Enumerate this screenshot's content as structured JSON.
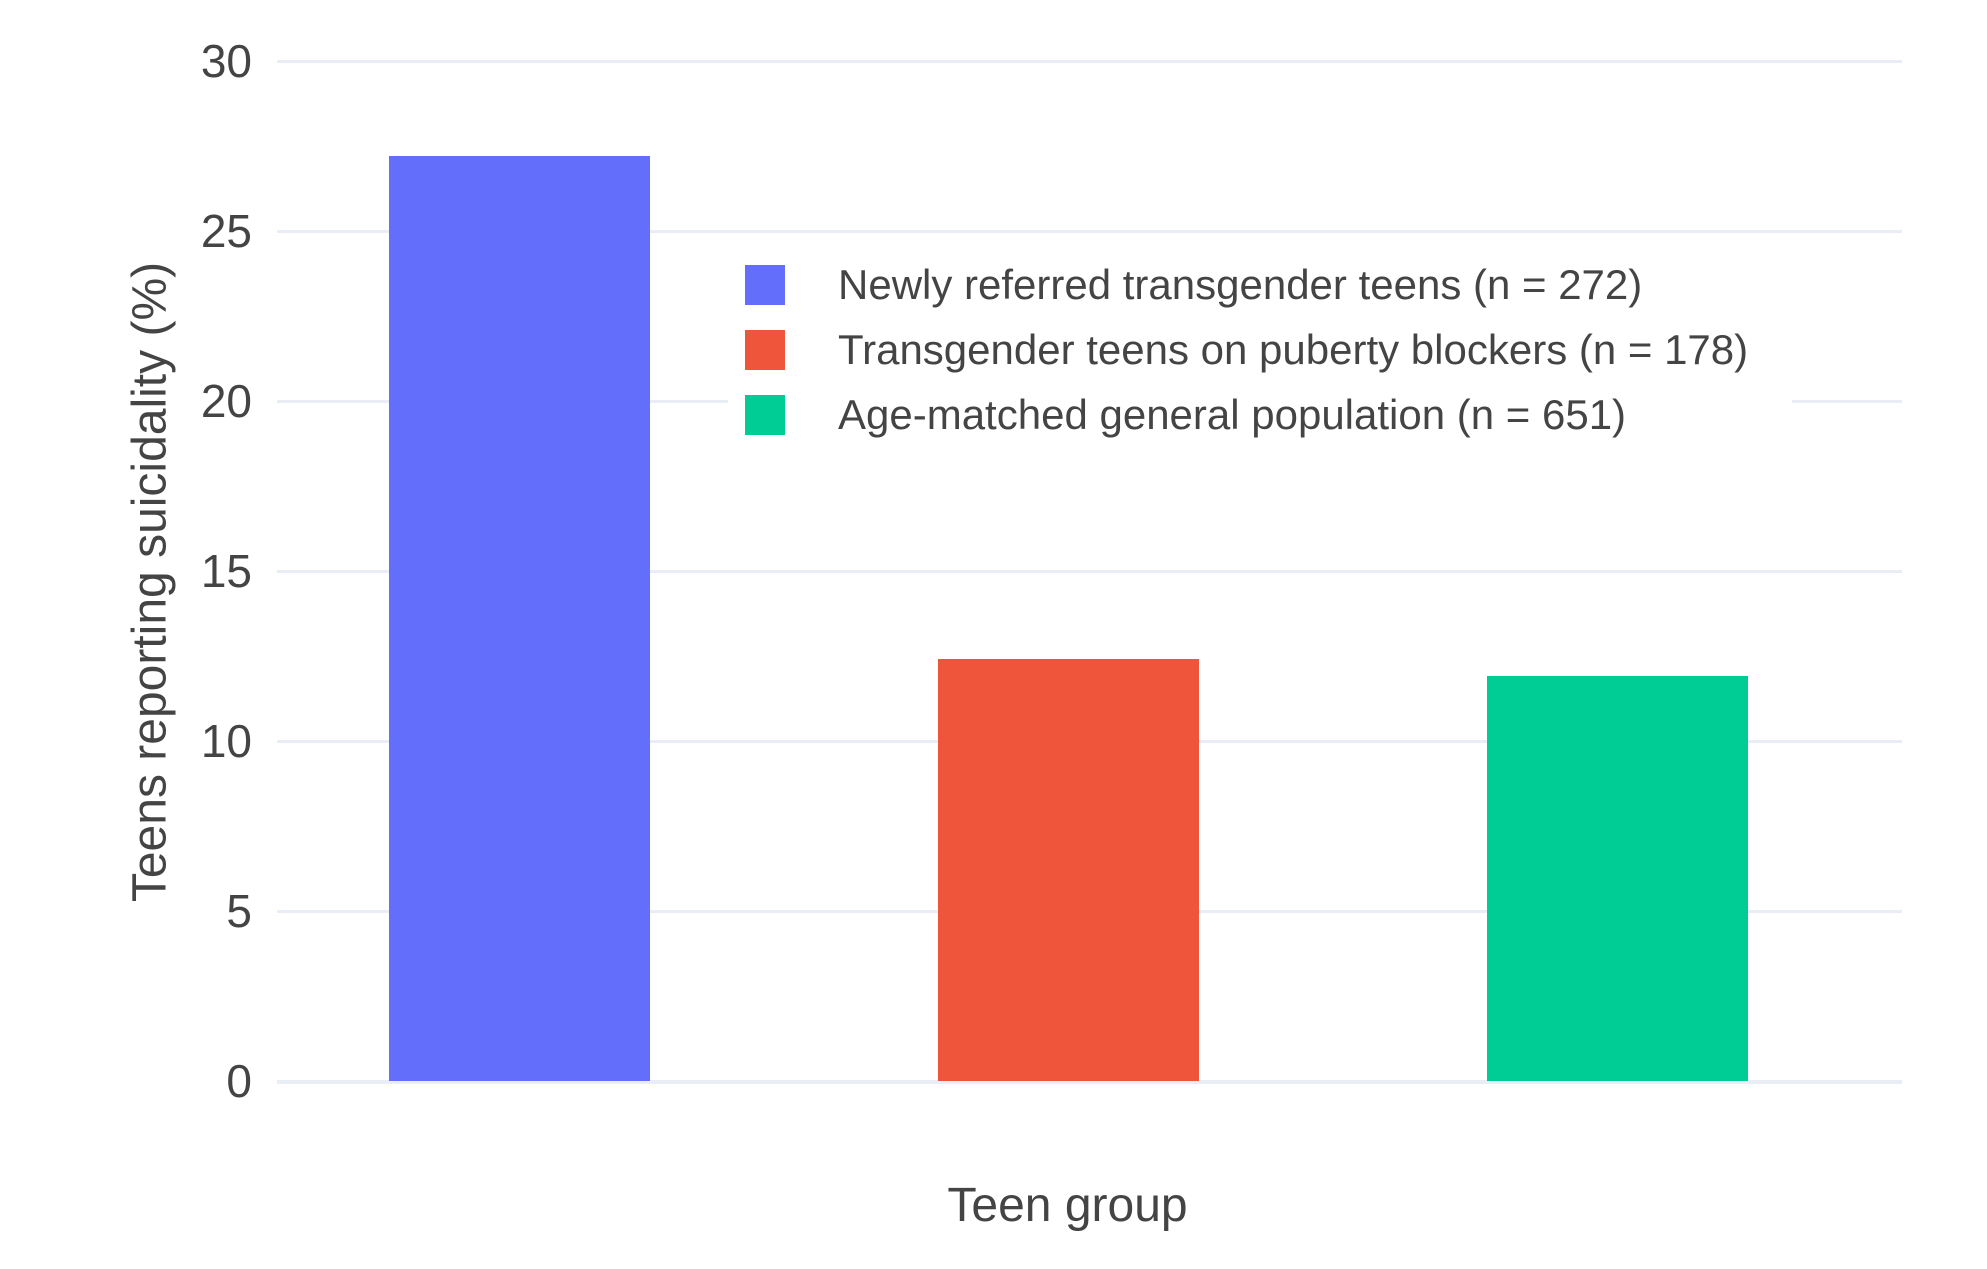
{
  "chart": {
    "background": "#ffffff",
    "text_color": "#444444",
    "grid_color": "#e8edf6"
  },
  "chart_data": {
    "type": "bar",
    "title": "",
    "xlabel": "Teen group",
    "ylabel": "Teens reporting suicidality (%)",
    "ylim": [
      0,
      30
    ],
    "ytick_interval": 5,
    "ytick_labels": [
      "0",
      "5",
      "10",
      "15",
      "20",
      "25",
      "30"
    ],
    "x_tick_labels": [],
    "grid": true,
    "legend_position": "inside top-center",
    "series": [
      {
        "slug": "newly-referred-transgender-teens",
        "name": "Newly referred transgender teens (n = 272)",
        "n": 272,
        "value": 27.2,
        "color": "#636efa"
      },
      {
        "slug": "transgender-teens-on-puberty-blockers",
        "name": "Transgender teens on puberty blockers (n = 178)",
        "n": 178,
        "value": 12.4,
        "color": "#ef553b"
      },
      {
        "slug": "age-matched-general-population",
        "name": "Age-matched general population (n = 651)",
        "n": 651,
        "value": 11.9,
        "color": "#00cc96"
      }
    ]
  }
}
